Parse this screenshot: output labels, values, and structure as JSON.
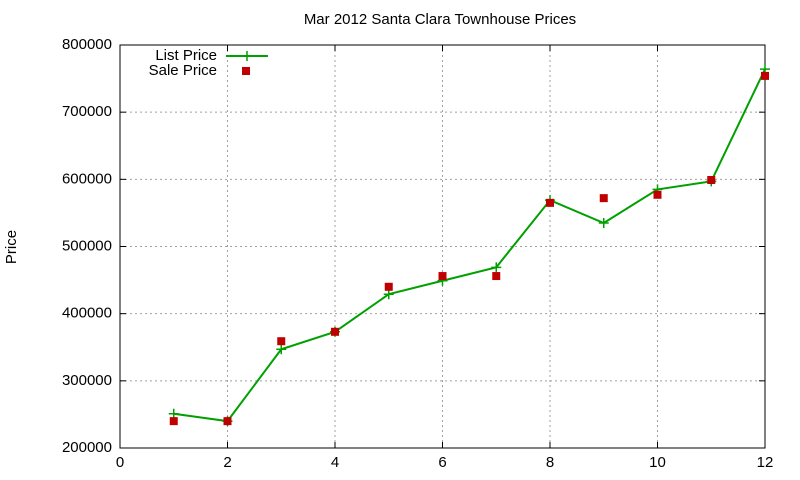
{
  "chart_data": {
    "type": "line",
    "title": "Mar 2012 Santa Clara Townhouse Prices",
    "y_label": "Price",
    "x": [
      1,
      2,
      3,
      4,
      5,
      6,
      7,
      8,
      9,
      10,
      11,
      12
    ],
    "series": [
      {
        "name": "List Price",
        "color": "#00a000",
        "style": "linespoints",
        "values": [
          251000,
          240000,
          347000,
          373000,
          429000,
          449000,
          469000,
          569000,
          535000,
          585000,
          597000,
          764000
        ]
      },
      {
        "name": "Sale Price",
        "color": "#c00000",
        "style": "points",
        "values": [
          240000,
          240000,
          359000,
          373000,
          440000,
          456000,
          456000,
          565000,
          572000,
          577000,
          599000,
          754000
        ]
      }
    ],
    "xlim": [
      0,
      12
    ],
    "xticks": [
      0,
      2,
      4,
      6,
      8,
      10,
      12
    ],
    "ylim": [
      200000,
      800000
    ],
    "yticks": [
      200000,
      300000,
      400000,
      500000,
      600000,
      700000,
      800000
    ],
    "grid": true,
    "legend": "top-left"
  }
}
